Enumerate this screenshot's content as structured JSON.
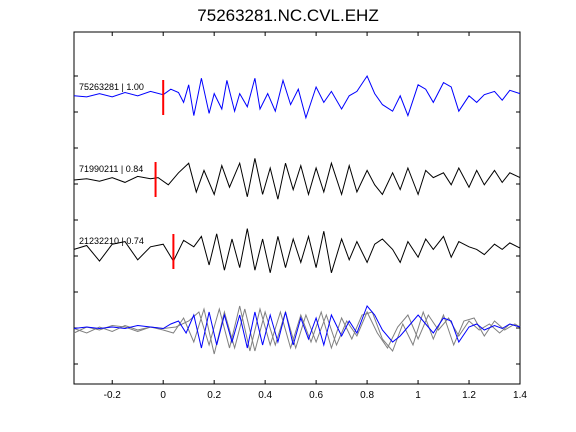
{
  "title": "75263281.NC.CVL.EHZ",
  "chart_data": {
    "type": "line",
    "title": "75263281.NC.CVL.EHZ",
    "xlim": [
      -0.35,
      1.4
    ],
    "xticks": [
      "-0.2",
      "0",
      "0.2",
      "0.4",
      "0.6",
      "0.8",
      "1",
      "1.2",
      "1.4"
    ],
    "xtick_values": [
      -0.2,
      0,
      0.2,
      0.4,
      0.6,
      0.8,
      1.0,
      1.2,
      1.4
    ],
    "grid": false,
    "colors": {
      "blue": "#0000ff",
      "black": "#000000",
      "gray": "#808080",
      "pick": "#ff0000",
      "axes": "#000000"
    },
    "traces": [
      {
        "name": "75263281 | 1.00",
        "color": "#0000ff",
        "pick_x": 0.0,
        "x": [
          -0.35,
          -0.3,
          -0.25,
          -0.2,
          -0.15,
          -0.1,
          -0.05,
          0.0,
          0.03,
          0.06,
          0.08,
          0.1,
          0.12,
          0.15,
          0.18,
          0.2,
          0.23,
          0.25,
          0.28,
          0.3,
          0.33,
          0.36,
          0.38,
          0.41,
          0.44,
          0.47,
          0.5,
          0.53,
          0.56,
          0.6,
          0.63,
          0.66,
          0.7,
          0.73,
          0.76,
          0.8,
          0.83,
          0.86,
          0.9,
          0.93,
          0.96,
          1.0,
          1.03,
          1.06,
          1.1,
          1.13,
          1.16,
          1.2,
          1.23,
          1.26,
          1.3,
          1.33,
          1.36,
          1.4
        ],
        "y": [
          0.1,
          0.05,
          0.2,
          0.05,
          0.25,
          0.1,
          0.3,
          0.15,
          0.4,
          0.25,
          -0.2,
          0.6,
          -0.8,
          0.9,
          -0.7,
          0.2,
          -0.5,
          0.8,
          -0.6,
          0.2,
          -0.4,
          0.9,
          -0.5,
          0.2,
          -0.6,
          0.8,
          -0.3,
          0.4,
          -0.9,
          0.5,
          -0.2,
          0.3,
          -0.5,
          0.1,
          0.3,
          1.0,
          0.2,
          -0.3,
          -0.6,
          0.1,
          -0.8,
          0.6,
          0.4,
          -0.2,
          0.7,
          0.5,
          -0.6,
          0.1,
          -0.2,
          0.15,
          0.3,
          -0.1,
          0.35,
          0.2
        ]
      },
      {
        "name": "71990211 | 0.84",
        "color": "#000000",
        "pick_x": -0.03,
        "x": [
          -0.35,
          -0.3,
          -0.25,
          -0.2,
          -0.15,
          -0.1,
          -0.05,
          -0.02,
          0.02,
          0.06,
          0.1,
          0.13,
          0.16,
          0.2,
          0.23,
          0.26,
          0.3,
          0.33,
          0.36,
          0.39,
          0.42,
          0.45,
          0.48,
          0.51,
          0.54,
          0.57,
          0.6,
          0.63,
          0.66,
          0.7,
          0.73,
          0.76,
          0.8,
          0.83,
          0.86,
          0.9,
          0.93,
          0.96,
          1.0,
          1.03,
          1.06,
          1.1,
          1.13,
          1.16,
          1.2,
          1.23,
          1.26,
          1.3,
          1.33,
          1.36,
          1.4
        ],
        "y": [
          0.0,
          0.05,
          -0.05,
          0.1,
          -0.1,
          0.15,
          0.05,
          0.1,
          -0.2,
          0.3,
          0.7,
          -0.5,
          0.4,
          -0.6,
          0.6,
          -0.3,
          0.7,
          -0.7,
          0.9,
          -0.6,
          0.5,
          -0.8,
          0.7,
          -0.4,
          0.6,
          -0.6,
          0.5,
          -0.5,
          0.7,
          -0.6,
          0.6,
          -0.5,
          0.4,
          -0.2,
          -0.6,
          0.3,
          -0.4,
          0.5,
          -0.6,
          0.4,
          0.1,
          0.3,
          -0.2,
          0.5,
          -0.3,
          0.4,
          -0.2,
          0.4,
          -0.1,
          0.3,
          0.1
        ]
      },
      {
        "name": "21232210 | 0.74",
        "color": "#000000",
        "pick_x": 0.04,
        "x": [
          -0.35,
          -0.3,
          -0.25,
          -0.2,
          -0.15,
          -0.1,
          -0.05,
          0.0,
          0.04,
          0.08,
          0.12,
          0.15,
          0.18,
          0.21,
          0.24,
          0.27,
          0.3,
          0.33,
          0.36,
          0.39,
          0.42,
          0.45,
          0.48,
          0.51,
          0.54,
          0.57,
          0.6,
          0.63,
          0.66,
          0.7,
          0.73,
          0.76,
          0.8,
          0.83,
          0.86,
          0.9,
          0.93,
          0.96,
          1.0,
          1.03,
          1.06,
          1.1,
          1.13,
          1.16,
          1.2,
          1.23,
          1.26,
          1.3,
          1.33,
          1.36,
          1.4
        ],
        "y": [
          0.1,
          0.25,
          -0.35,
          0.3,
          0.4,
          -0.3,
          0.2,
          0.3,
          -0.35,
          0.45,
          0.2,
          0.6,
          -0.5,
          0.7,
          -0.7,
          0.5,
          -0.6,
          0.9,
          -0.7,
          0.5,
          -0.8,
          0.6,
          -0.6,
          0.5,
          -0.4,
          0.6,
          -0.6,
          0.8,
          -0.8,
          0.5,
          -0.3,
          0.4,
          -0.4,
          0.3,
          0.5,
          0.1,
          -0.4,
          0.4,
          -0.2,
          0.5,
          0.1,
          0.6,
          -0.2,
          0.4,
          0.2,
          0.1,
          -0.1,
          0.3,
          0.1,
          0.35,
          0.15
        ]
      }
    ],
    "overlay": {
      "blue": {
        "x": [
          -0.35,
          -0.3,
          -0.25,
          -0.2,
          -0.15,
          -0.1,
          -0.05,
          0.0,
          0.03,
          0.06,
          0.09,
          0.12,
          0.15,
          0.18,
          0.21,
          0.24,
          0.27,
          0.3,
          0.33,
          0.36,
          0.39,
          0.42,
          0.45,
          0.48,
          0.51,
          0.54,
          0.57,
          0.6,
          0.63,
          0.66,
          0.7,
          0.73,
          0.76,
          0.8,
          0.83,
          0.86,
          0.9,
          0.93,
          0.96,
          1.0,
          1.03,
          1.06,
          1.1,
          1.13,
          1.16,
          1.2,
          1.23,
          1.26,
          1.3,
          1.33,
          1.36,
          1.4
        ],
        "y": [
          0.05,
          0.1,
          0.05,
          0.1,
          0.05,
          0.15,
          0.1,
          0.05,
          0.2,
          0.3,
          -0.1,
          0.5,
          -0.6,
          0.6,
          -0.5,
          0.5,
          -0.4,
          0.5,
          -0.6,
          0.6,
          -0.5,
          0.5,
          -0.4,
          0.6,
          -0.5,
          0.4,
          -0.3,
          0.4,
          -0.5,
          0.5,
          -0.2,
          0.3,
          -0.1,
          0.8,
          0.5,
          0.0,
          -0.4,
          -0.2,
          0.1,
          0.5,
          0.2,
          -0.1,
          0.4,
          0.3,
          -0.4,
          0.1,
          0.2,
          0.0,
          0.15,
          0.05,
          0.2,
          0.1
        ]
      },
      "grays": [
        {
          "x": [
            -0.35,
            -0.3,
            -0.25,
            -0.2,
            -0.15,
            -0.1,
            -0.05,
            0.0,
            0.04,
            0.08,
            0.12,
            0.16,
            0.2,
            0.24,
            0.28,
            0.32,
            0.36,
            0.4,
            0.44,
            0.48,
            0.52,
            0.56,
            0.6,
            0.64,
            0.68,
            0.72,
            0.76,
            0.8,
            0.84,
            0.88,
            0.92,
            0.96,
            1.0,
            1.04,
            1.08,
            1.12,
            1.16,
            1.2,
            1.24,
            1.28,
            1.32,
            1.36,
            1.4
          ],
          "y": [
            -0.1,
            0.1,
            0.0,
            0.15,
            0.1,
            -0.05,
            0.1,
            0.0,
            -0.1,
            0.4,
            -0.4,
            0.7,
            -0.8,
            0.6,
            -0.6,
            0.7,
            -0.7,
            0.6,
            -0.5,
            0.6,
            -0.6,
            0.5,
            -0.4,
            0.5,
            -0.5,
            0.3,
            -0.2,
            0.6,
            -0.1,
            -0.6,
            0.1,
            0.5,
            -0.3,
            0.5,
            0.0,
            0.4,
            -0.2,
            0.3,
            0.0,
            0.2,
            -0.1,
            0.2,
            0.1
          ]
        },
        {
          "x": [
            -0.35,
            -0.3,
            -0.25,
            -0.2,
            -0.15,
            -0.1,
            -0.05,
            0.0,
            0.05,
            0.1,
            0.14,
            0.18,
            0.22,
            0.26,
            0.3,
            0.34,
            0.38,
            0.42,
            0.46,
            0.5,
            0.54,
            0.58,
            0.62,
            0.66,
            0.7,
            0.74,
            0.78,
            0.82,
            0.86,
            0.9,
            0.94,
            0.98,
            1.02,
            1.06,
            1.1,
            1.14,
            1.18,
            1.22,
            1.26,
            1.3,
            1.34,
            1.38,
            1.4
          ],
          "y": [
            0.05,
            -0.1,
            0.1,
            -0.05,
            0.15,
            0.0,
            0.1,
            0.05,
            0.1,
            0.3,
            0.6,
            -0.5,
            0.7,
            -0.6,
            0.8,
            -0.7,
            0.7,
            -0.5,
            0.6,
            -0.6,
            0.5,
            -0.4,
            0.6,
            -0.6,
            0.4,
            -0.3,
            0.5,
            0.6,
            -0.3,
            -0.7,
            0.2,
            -0.5,
            0.6,
            -0.3,
            0.5,
            -0.5,
            0.3,
            0.4,
            -0.2,
            0.3,
            0.0,
            0.2,
            0.1
          ]
        }
      ]
    }
  }
}
